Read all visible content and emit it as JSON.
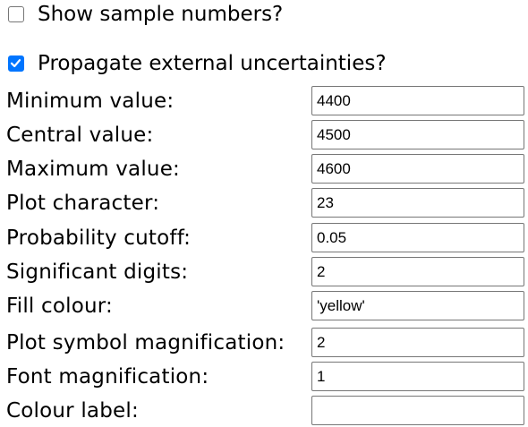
{
  "options": {
    "show_sample_numbers": {
      "label": "Show sample numbers?",
      "checked": false
    },
    "propagate_external_uncertainties": {
      "label": "Propagate external uncertainties?",
      "checked": true
    }
  },
  "fields": [
    {
      "label": "Minimum value:",
      "value": "4400"
    },
    {
      "label": "Central value:",
      "value": "4500"
    },
    {
      "label": "Maximum value:",
      "value": "4600"
    },
    {
      "label": "Plot character:",
      "value": "23"
    },
    {
      "label": "Probability cutoff:",
      "value": "0.05"
    },
    {
      "label": "Significant digits:",
      "value": "2"
    },
    {
      "label": "Fill colour:",
      "value": "'yellow'"
    },
    {
      "label": "Plot symbol magnification:",
      "value": "2"
    },
    {
      "label": "Font magnification:",
      "value": "1"
    },
    {
      "label": "Colour label:",
      "value": ""
    }
  ]
}
